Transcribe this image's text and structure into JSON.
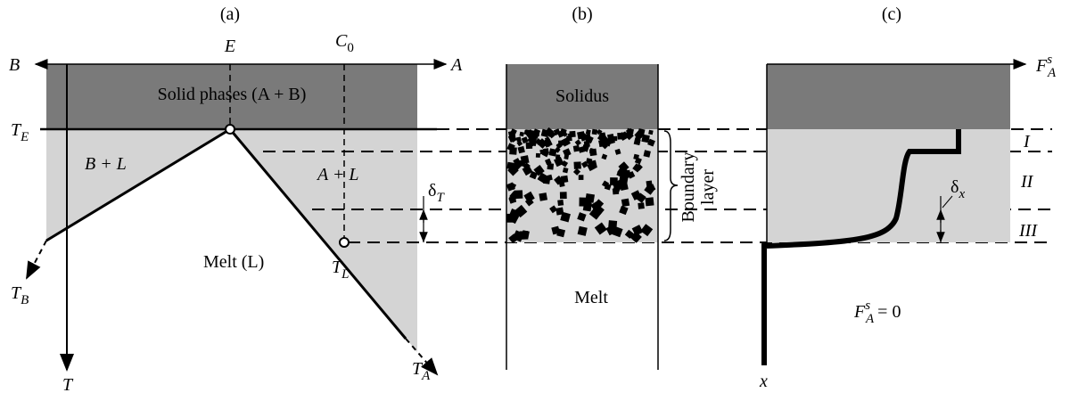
{
  "panels": {
    "a": "(a)",
    "b": "(b)",
    "c": "(c)"
  },
  "phase_diagram": {
    "axis_left": "B",
    "axis_right": "A",
    "eutectic": "E",
    "composition": {
      "base": "C",
      "sub": "0"
    },
    "solid_region": "Solid phases (A + B)",
    "eutectic_temperature": {
      "base": "T",
      "sub": "E"
    },
    "left_region": "B + L",
    "right_region": "A + L",
    "melt_region": "Melt (L)",
    "delta_t": {
      "base": "δ",
      "sub": "T"
    },
    "liquidus_temperature": {
      "base": "T",
      "sub": "L"
    },
    "melting_b": {
      "base": "T",
      "sub": "B"
    },
    "melting_a": {
      "base": "T",
      "sub": "A"
    },
    "temperature_axis": "T"
  },
  "structure": {
    "solidus": "Solidus",
    "boundary_layer": [
      "Boundary",
      "layer"
    ],
    "melt": "Melt"
  },
  "fraction": {
    "axis": {
      "base": "F",
      "sub": "A",
      "sup": "s"
    },
    "zones": [
      "I",
      "II",
      "III"
    ],
    "delta_x": {
      "base": "δ",
      "sub": "x"
    },
    "zero": {
      "base": "F",
      "sub": "A",
      "sup": "s",
      "rest": "= 0"
    },
    "depth_axis": "x"
  }
}
